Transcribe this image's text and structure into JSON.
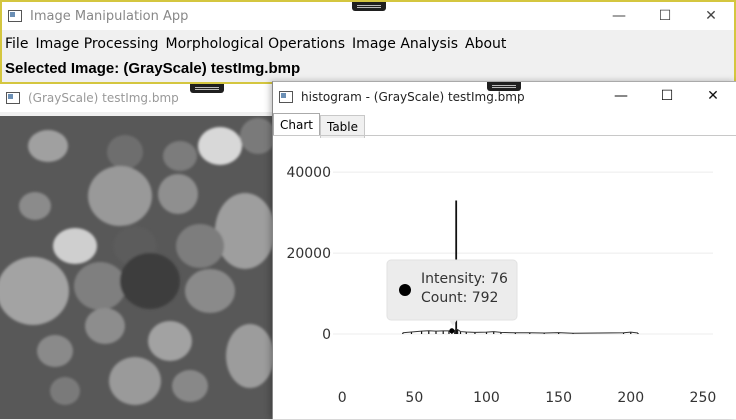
{
  "main_window": {
    "title": "Image Manipulation App",
    "controls": {
      "minimize": "—",
      "maximize": "☐",
      "close": "✕"
    },
    "menu": [
      "File",
      "Image Processing",
      "Morphological Operations",
      "Image Analysis",
      "About"
    ],
    "selected_image_label": "Selected Image: (GrayScale) testImg.bmp"
  },
  "image_window": {
    "title": "(GrayScale) testImg.bmp"
  },
  "histogram_window": {
    "title": "histogram - (GrayScale) testImg.bmp",
    "controls": {
      "minimize": "—",
      "maximize": "☐",
      "close": "✕"
    },
    "tabs": [
      {
        "label": "Chart",
        "active": true
      },
      {
        "label": "Table",
        "active": false
      }
    ],
    "tooltip": {
      "intensity_label": "Intensity: 76",
      "count_label": "Count:  792"
    }
  },
  "chart_data": {
    "type": "bar",
    "title": "",
    "xlabel": "",
    "ylabel": "",
    "x_ticks": [
      0,
      50,
      100,
      150,
      200,
      250
    ],
    "y_ticks": [
      0,
      20000,
      40000
    ],
    "xlim": [
      -5,
      257
    ],
    "ylim": [
      0,
      44000
    ],
    "grid": true,
    "x": [
      42,
      48,
      55,
      60,
      65,
      70,
      74,
      76,
      78,
      79,
      80,
      82,
      86,
      92,
      100,
      105,
      110,
      120,
      130,
      140,
      150,
      160,
      195,
      200,
      205
    ],
    "values": [
      300,
      500,
      700,
      800,
      700,
      760,
      780,
      792,
      900,
      33000,
      1100,
      600,
      500,
      400,
      450,
      600,
      400,
      300,
      300,
      250,
      350,
      200,
      300,
      450,
      250
    ],
    "highlight": {
      "x": 76,
      "y": 792
    }
  }
}
